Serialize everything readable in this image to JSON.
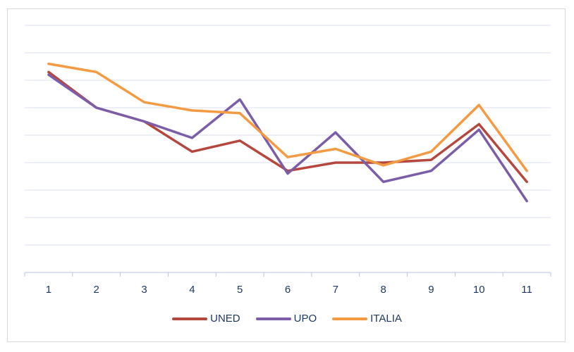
{
  "chart_data": {
    "type": "line",
    "categories": [
      "1",
      "2",
      "3",
      "4",
      "5",
      "6",
      "7",
      "8",
      "9",
      "10",
      "11"
    ],
    "ylim": [
      0,
      9
    ],
    "grid": true,
    "legend_position": "bottom",
    "series": [
      {
        "name": "UNED",
        "color": "#b5473f",
        "values": [
          7.3,
          6.0,
          5.5,
          4.4,
          4.8,
          3.7,
          4.0,
          4.0,
          4.1,
          5.4,
          3.3
        ]
      },
      {
        "name": "UPO",
        "color": "#7b5ea7",
        "values": [
          7.2,
          6.0,
          5.5,
          4.9,
          6.3,
          3.6,
          5.1,
          3.3,
          3.7,
          5.2,
          2.6
        ]
      },
      {
        "name": "ITALIA",
        "color": "#f39a43",
        "values": [
          7.6,
          7.3,
          6.2,
          5.9,
          5.8,
          4.2,
          4.5,
          3.9,
          4.4,
          6.1,
          3.7
        ]
      }
    ]
  }
}
